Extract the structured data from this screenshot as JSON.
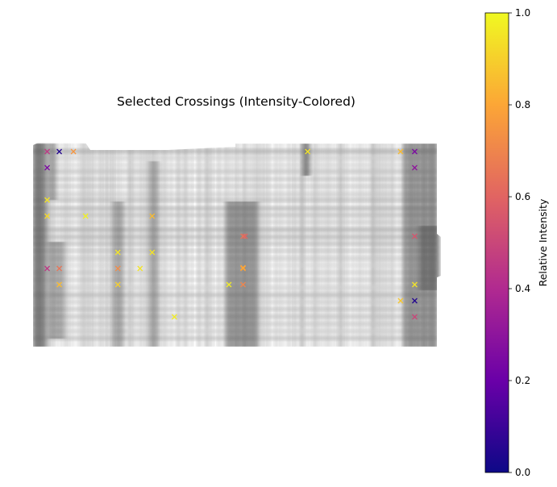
{
  "chart_data": {
    "type": "scatter",
    "title": "Selected Crossings (Intensity-Colored)",
    "xlabel": "",
    "ylabel": "",
    "axes_visible": false,
    "background": "grayscale grid image of overlapping vertical and horizontal line strands",
    "marker": "x",
    "colormap": "plasma",
    "colorbar": {
      "label": "Relative Intensity",
      "range": [
        0.0,
        1.0
      ],
      "ticks": [
        0.0,
        0.2,
        0.4,
        0.6,
        0.8,
        1.0
      ],
      "tick_labels": [
        "0.0",
        "0.2",
        "0.4",
        "0.6",
        "0.8",
        "1.0"
      ]
    },
    "image_extent": {
      "x": [
        0,
        100
      ],
      "y": [
        0,
        50
      ]
    },
    "points": [
      {
        "x": 3.5,
        "y": 48,
        "intensity": 0.45
      },
      {
        "x": 6.5,
        "y": 48,
        "intensity": 0.05
      },
      {
        "x": 10,
        "y": 48,
        "intensity": 0.75
      },
      {
        "x": 3.5,
        "y": 44,
        "intensity": 0.25
      },
      {
        "x": 3.5,
        "y": 36,
        "intensity": 0.95
      },
      {
        "x": 3.5,
        "y": 32,
        "intensity": 0.92
      },
      {
        "x": 13,
        "y": 32,
        "intensity": 0.98
      },
      {
        "x": 3.5,
        "y": 19,
        "intensity": 0.45
      },
      {
        "x": 6.5,
        "y": 19,
        "intensity": 0.65
      },
      {
        "x": 6.5,
        "y": 15,
        "intensity": 0.85
      },
      {
        "x": 21,
        "y": 23,
        "intensity": 0.95
      },
      {
        "x": 21,
        "y": 19,
        "intensity": 0.72
      },
      {
        "x": 21,
        "y": 15,
        "intensity": 0.9
      },
      {
        "x": 26.5,
        "y": 19,
        "intensity": 0.95
      },
      {
        "x": 29.5,
        "y": 32,
        "intensity": 0.85
      },
      {
        "x": 29.5,
        "y": 23,
        "intensity": 0.95
      },
      {
        "x": 35,
        "y": 7,
        "intensity": 0.97
      },
      {
        "x": 52,
        "y": 27,
        "intensity": 0.65
      },
      {
        "x": 52,
        "y": 19,
        "intensity": 0.78
      },
      {
        "x": 52,
        "y": 15,
        "intensity": 0.7
      },
      {
        "x": 52.5,
        "y": 27,
        "intensity": 0.6
      },
      {
        "x": 52,
        "y": 19.2,
        "intensity": 0.8
      },
      {
        "x": 68,
        "y": 48,
        "intensity": 0.95
      },
      {
        "x": 91,
        "y": 48,
        "intensity": 0.85
      },
      {
        "x": 94.5,
        "y": 48,
        "intensity": 0.25
      },
      {
        "x": 94.5,
        "y": 44,
        "intensity": 0.3
      },
      {
        "x": 94.5,
        "y": 27,
        "intensity": 0.55
      },
      {
        "x": 94.5,
        "y": 15,
        "intensity": 0.95
      },
      {
        "x": 91,
        "y": 11,
        "intensity": 0.88
      },
      {
        "x": 94.5,
        "y": 11,
        "intensity": 0.05
      },
      {
        "x": 94.5,
        "y": 7,
        "intensity": 0.5
      },
      {
        "x": 48.5,
        "y": 15,
        "intensity": 0.97
      }
    ]
  },
  "colors": {
    "plasma_stops": [
      "#0d0887",
      "#6a00a8",
      "#b12a90",
      "#e16462",
      "#fca636",
      "#f0f921"
    ],
    "image_dark": "#3a3a3a",
    "image_mid": "#9a9a9a",
    "image_light": "#c8c8c8"
  }
}
